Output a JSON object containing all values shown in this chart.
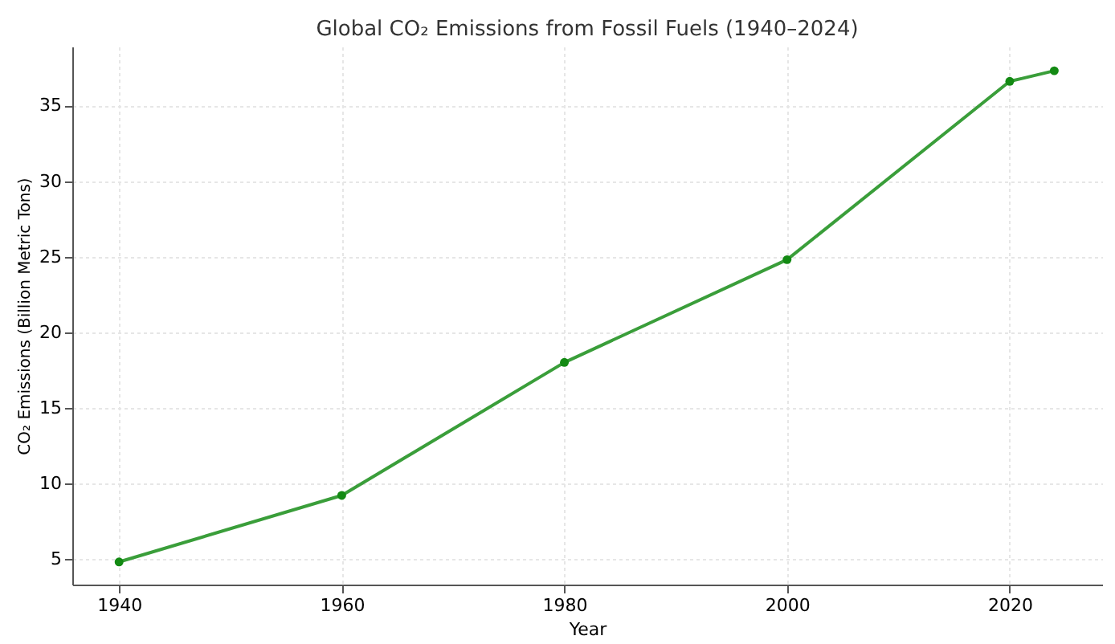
{
  "chart_data": {
    "type": "line",
    "title": "Global CO₂ Emissions from Fossil Fuels (1940–2024)",
    "xlabel": "Year",
    "ylabel": "CO₂ Emissions (Billion Metric Tons)",
    "x": [
      1940,
      1960,
      1980,
      2000,
      2020,
      2024
    ],
    "series": [
      {
        "color": "#3a9e3a",
        "values": [
          4.8,
          9.2,
          18.0,
          24.8,
          36.6,
          37.3
        ]
      }
    ],
    "xlim": [
      1935.8,
      2028.3
    ],
    "xticks": [
      1940,
      1960,
      1980,
      2000,
      2020
    ],
    "ylim": [
      3.3,
      38.9
    ],
    "yticks": [
      5,
      10,
      15,
      20,
      25,
      30,
      35
    ],
    "grid": true,
    "marker": "circle",
    "line_style": "solid"
  }
}
